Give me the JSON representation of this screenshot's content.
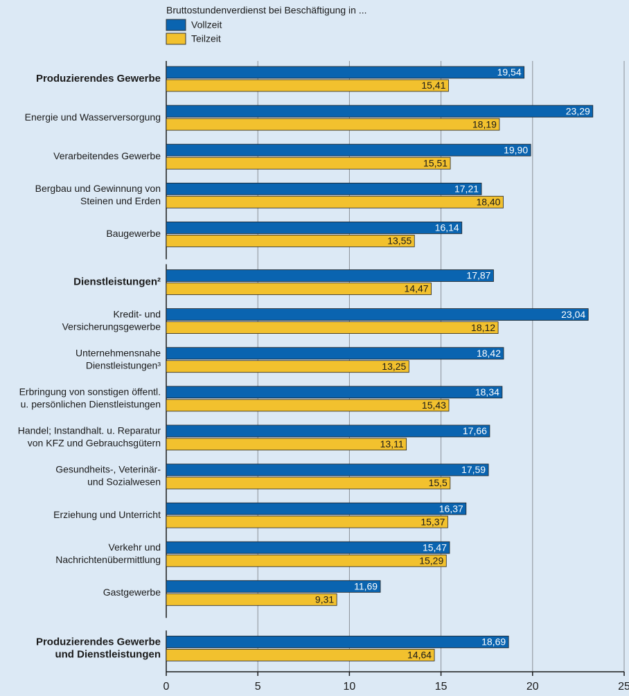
{
  "chart_data": {
    "type": "bar",
    "orientation": "horizontal",
    "legend_title": "Bruttostundenverdienst bei Beschäftigung in ...",
    "categories": [
      [
        "Produzierendes Gewerbe"
      ],
      [
        "Energie und Wasserversorgung"
      ],
      [
        "Verarbeitendes Gewerbe"
      ],
      [
        "Bergbau und Gewinnung von",
        "Steinen und Erden"
      ],
      [
        "Baugewerbe"
      ],
      [
        "Dienstleistungen²"
      ],
      [
        "Kredit- und",
        "Versicherungsgewerbe"
      ],
      [
        "Unternehmensnahe",
        "Dienstleistungen³"
      ],
      [
        "Erbringung von sonstigen öffentl.",
        "u. persönlichen Dienstleistungen"
      ],
      [
        "Handel; Instandhalt. u. Reparatur",
        "von KFZ und Gebrauchsgütern"
      ],
      [
        "Gesundheits-, Veterinär-",
        "und Sozialwesen"
      ],
      [
        "Erziehung und Unterricht"
      ],
      [
        "Verkehr und",
        "Nachrichtenübermittlung"
      ],
      [
        "Gastgewerbe"
      ],
      [
        "Produzierendes Gewerbe",
        "und Dienstleistungen"
      ]
    ],
    "bold_categories": [
      0,
      5,
      14
    ],
    "sections": [
      5,
      9,
      1
    ],
    "series": [
      {
        "name": "Vollzeit",
        "color": "#0a64b0",
        "label_color": "#ffffff",
        "values": [
          19.54,
          23.29,
          19.9,
          17.21,
          16.14,
          17.87,
          23.04,
          18.42,
          18.34,
          17.66,
          17.59,
          16.37,
          15.47,
          11.69,
          18.69
        ],
        "value_labels": [
          "19,54",
          "23,29",
          "19,90",
          "17,21",
          "16,14",
          "17,87",
          "23,04",
          "18,42",
          "18,34",
          "17,66",
          "17,59",
          "16,37",
          "15,47",
          "11,69",
          "18,69"
        ]
      },
      {
        "name": "Teilzeit",
        "color": "#f2c12e",
        "label_color": "#1a1a1a",
        "values": [
          15.41,
          18.19,
          15.51,
          18.4,
          13.55,
          14.47,
          18.12,
          13.25,
          15.43,
          13.11,
          15.5,
          15.37,
          15.29,
          9.31,
          14.64
        ],
        "value_labels": [
          "15,41",
          "18,19",
          "15,51",
          "18,40",
          "13,55",
          "14,47",
          "18,12",
          "13,25",
          "15,43",
          "13,11",
          "15,5",
          "15,37",
          "15,29",
          "9,31",
          "14,64"
        ]
      }
    ],
    "xlim": [
      0,
      25
    ],
    "xticks": [
      0,
      5,
      10,
      15,
      20,
      25
    ],
    "grid": true
  }
}
